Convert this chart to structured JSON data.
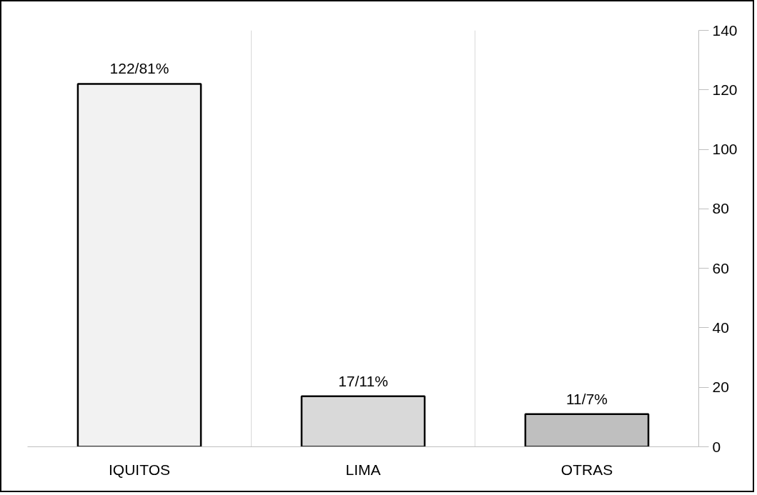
{
  "chart_data": {
    "type": "bar",
    "categories": [
      "IQUITOS",
      "LIMA",
      "OTRAS"
    ],
    "values": [
      122,
      17,
      11
    ],
    "colors": [
      "#f2f2f2",
      "#d9d9d9",
      "#bfbfbf"
    ],
    "value_labels": [
      "122/81%",
      "17/11%",
      "11/7%"
    ],
    "ylim": [
      0,
      140
    ],
    "yticks": [
      0,
      20,
      40,
      60,
      80,
      100,
      120,
      140
    ],
    "grid": "x"
  }
}
